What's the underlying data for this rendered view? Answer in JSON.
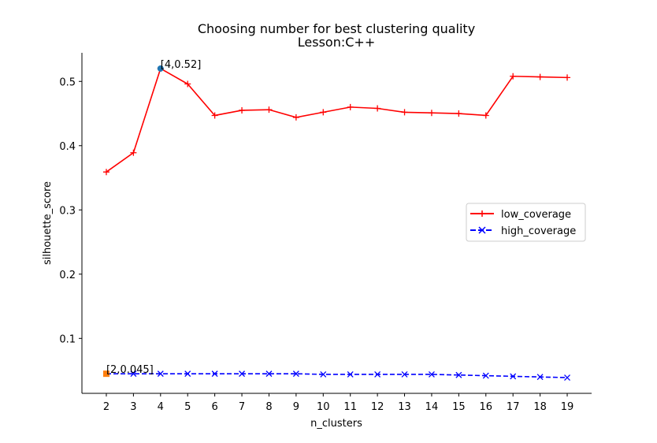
{
  "chart_data": {
    "type": "line",
    "title": "Choosing number for best clustering quality",
    "subtitle": "Lesson:C++",
    "xlabel": "n_clusters",
    "ylabel": "silhouette_score",
    "x": [
      2,
      3,
      4,
      5,
      6,
      7,
      8,
      9,
      10,
      11,
      12,
      13,
      14,
      15,
      16,
      17,
      18,
      19
    ],
    "xlim": [
      1.1,
      19.9
    ],
    "ylim": [
      0.0145,
      0.5445
    ],
    "yticks": [
      0.1,
      0.2,
      0.3,
      0.4,
      0.5
    ],
    "ytick_labels": [
      "0.1",
      "0.2",
      "0.3",
      "0.4",
      "0.5"
    ],
    "series": [
      {
        "name": "low_coverage",
        "color": "#ff0000",
        "marker": "plus",
        "linestyle": "solid",
        "values": [
          0.359,
          0.389,
          0.52,
          0.496,
          0.447,
          0.455,
          0.456,
          0.444,
          0.452,
          0.46,
          0.458,
          0.452,
          0.451,
          0.45,
          0.447,
          0.508,
          0.507,
          0.506
        ]
      },
      {
        "name": "high_coverage",
        "color": "#0000ff",
        "marker": "x",
        "linestyle": "dashed",
        "values": [
          0.045,
          0.045,
          0.045,
          0.045,
          0.045,
          0.045,
          0.045,
          0.045,
          0.044,
          0.044,
          0.044,
          0.044,
          0.044,
          0.043,
          0.042,
          0.041,
          0.04,
          0.039
        ]
      }
    ],
    "highlights": [
      {
        "x": 4,
        "y": 0.52,
        "label": "[4,0.52]",
        "color": "#1f77b4",
        "marker": "circle"
      },
      {
        "x": 2,
        "y": 0.045,
        "label": "[2,0.045]",
        "color": "#ff7f0e",
        "marker": "square"
      }
    ],
    "legend_position": "center-right",
    "grid": false
  }
}
